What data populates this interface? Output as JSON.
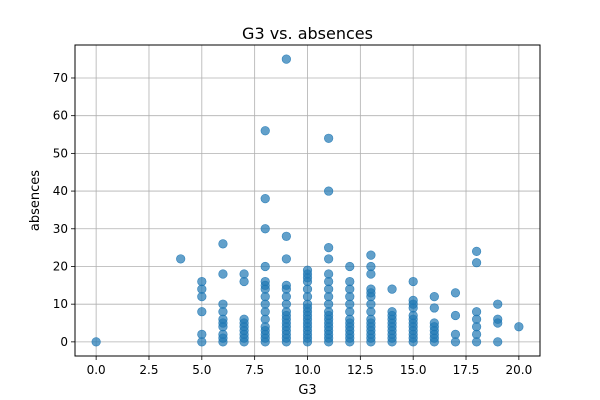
{
  "chart_data": {
    "type": "scatter",
    "title": "G3 vs. absences",
    "xlabel": "G3",
    "ylabel": "absences",
    "xlim": [
      -1,
      21
    ],
    "ylim": [
      -3.75,
      78.75
    ],
    "xticks": [
      0.0,
      2.5,
      5.0,
      7.5,
      10.0,
      12.5,
      15.0,
      17.5,
      20.0
    ],
    "xtick_labels": [
      "0.0",
      "2.5",
      "5.0",
      "7.5",
      "10.0",
      "12.5",
      "15.0",
      "17.5",
      "20.0"
    ],
    "yticks": [
      0,
      10,
      20,
      30,
      40,
      50,
      60,
      70
    ],
    "ytick_labels": [
      "0",
      "10",
      "20",
      "30",
      "40",
      "50",
      "60",
      "70"
    ],
    "grid": true,
    "marker_color": "#1f77b4",
    "marker_alpha": 0.7,
    "points": [
      [
        0,
        0
      ],
      [
        4,
        22
      ],
      [
        5,
        0
      ],
      [
        5,
        2
      ],
      [
        5,
        8
      ],
      [
        5,
        12
      ],
      [
        5,
        14
      ],
      [
        5,
        16
      ],
      [
        6,
        0
      ],
      [
        6,
        1
      ],
      [
        6,
        2
      ],
      [
        6,
        4
      ],
      [
        6,
        5
      ],
      [
        6,
        6
      ],
      [
        6,
        8
      ],
      [
        6,
        10
      ],
      [
        6,
        18
      ],
      [
        6,
        26
      ],
      [
        7,
        0
      ],
      [
        7,
        1
      ],
      [
        7,
        2
      ],
      [
        7,
        3
      ],
      [
        7,
        4
      ],
      [
        7,
        5
      ],
      [
        7,
        6
      ],
      [
        7,
        16
      ],
      [
        7,
        18
      ],
      [
        8,
        0
      ],
      [
        8,
        1
      ],
      [
        8,
        2
      ],
      [
        8,
        3
      ],
      [
        8,
        4
      ],
      [
        8,
        6
      ],
      [
        8,
        8
      ],
      [
        8,
        10
      ],
      [
        8,
        12
      ],
      [
        8,
        14
      ],
      [
        8,
        15
      ],
      [
        8,
        16
      ],
      [
        8,
        20
      ],
      [
        8,
        30
      ],
      [
        8,
        38
      ],
      [
        8,
        56
      ],
      [
        9,
        0
      ],
      [
        9,
        1
      ],
      [
        9,
        2
      ],
      [
        9,
        3
      ],
      [
        9,
        4
      ],
      [
        9,
        5
      ],
      [
        9,
        6
      ],
      [
        9,
        7
      ],
      [
        9,
        8
      ],
      [
        9,
        10
      ],
      [
        9,
        12
      ],
      [
        9,
        14
      ],
      [
        9,
        15
      ],
      [
        9,
        22
      ],
      [
        9,
        28
      ],
      [
        9,
        75
      ],
      [
        10,
        0
      ],
      [
        10,
        1
      ],
      [
        10,
        2
      ],
      [
        10,
        3
      ],
      [
        10,
        4
      ],
      [
        10,
        5
      ],
      [
        10,
        6
      ],
      [
        10,
        7
      ],
      [
        10,
        8
      ],
      [
        10,
        9
      ],
      [
        10,
        10
      ],
      [
        10,
        12
      ],
      [
        10,
        14
      ],
      [
        10,
        16
      ],
      [
        10,
        17
      ],
      [
        10,
        18
      ],
      [
        10,
        19
      ],
      [
        11,
        0
      ],
      [
        11,
        1
      ],
      [
        11,
        2
      ],
      [
        11,
        3
      ],
      [
        11,
        4
      ],
      [
        11,
        5
      ],
      [
        11,
        6
      ],
      [
        11,
        7
      ],
      [
        11,
        8
      ],
      [
        11,
        10
      ],
      [
        11,
        12
      ],
      [
        11,
        14
      ],
      [
        11,
        16
      ],
      [
        11,
        18
      ],
      [
        11,
        22
      ],
      [
        11,
        25
      ],
      [
        11,
        40
      ],
      [
        11,
        54
      ],
      [
        12,
        0
      ],
      [
        12,
        1
      ],
      [
        12,
        2
      ],
      [
        12,
        3
      ],
      [
        12,
        4
      ],
      [
        12,
        5
      ],
      [
        12,
        6
      ],
      [
        12,
        8
      ],
      [
        12,
        10
      ],
      [
        12,
        12
      ],
      [
        12,
        14
      ],
      [
        12,
        16
      ],
      [
        12,
        20
      ],
      [
        13,
        0
      ],
      [
        13,
        1
      ],
      [
        13,
        2
      ],
      [
        13,
        3
      ],
      [
        13,
        4
      ],
      [
        13,
        5
      ],
      [
        13,
        6
      ],
      [
        13,
        8
      ],
      [
        13,
        10
      ],
      [
        13,
        12
      ],
      [
        13,
        13
      ],
      [
        13,
        14
      ],
      [
        13,
        18
      ],
      [
        13,
        20
      ],
      [
        13,
        23
      ],
      [
        14,
        0
      ],
      [
        14,
        1
      ],
      [
        14,
        2
      ],
      [
        14,
        3
      ],
      [
        14,
        4
      ],
      [
        14,
        5
      ],
      [
        14,
        6
      ],
      [
        14,
        7
      ],
      [
        14,
        8
      ],
      [
        14,
        14
      ],
      [
        15,
        0
      ],
      [
        15,
        1
      ],
      [
        15,
        2
      ],
      [
        15,
        3
      ],
      [
        15,
        4
      ],
      [
        15,
        5
      ],
      [
        15,
        6
      ],
      [
        15,
        7
      ],
      [
        15,
        9
      ],
      [
        15,
        10
      ],
      [
        15,
        11
      ],
      [
        15,
        16
      ],
      [
        16,
        0
      ],
      [
        16,
        1
      ],
      [
        16,
        2
      ],
      [
        16,
        3
      ],
      [
        16,
        4
      ],
      [
        16,
        5
      ],
      [
        16,
        9
      ],
      [
        16,
        12
      ],
      [
        17,
        0
      ],
      [
        17,
        2
      ],
      [
        17,
        7
      ],
      [
        17,
        13
      ],
      [
        18,
        0
      ],
      [
        18,
        2
      ],
      [
        18,
        4
      ],
      [
        18,
        6
      ],
      [
        18,
        8
      ],
      [
        18,
        21
      ],
      [
        18,
        24
      ],
      [
        19,
        0
      ],
      [
        19,
        5
      ],
      [
        19,
        6
      ],
      [
        19,
        10
      ],
      [
        20,
        4
      ]
    ]
  }
}
